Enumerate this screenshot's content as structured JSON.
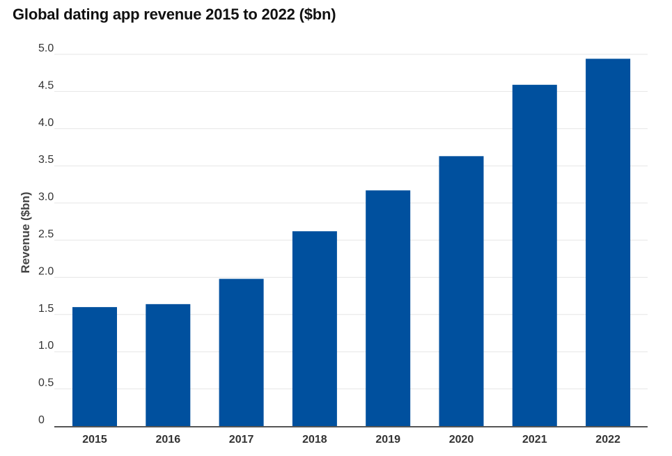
{
  "chart_data": {
    "type": "bar",
    "title": "Global dating app revenue 2015 to 2022 ($bn)",
    "xlabel": "",
    "ylabel": "Revenue ($bn)",
    "categories": [
      "2015",
      "2016",
      "2017",
      "2018",
      "2019",
      "2020",
      "2021",
      "2022"
    ],
    "values": [
      1.6,
      1.64,
      1.98,
      2.62,
      3.17,
      3.63,
      4.59,
      4.94
    ],
    "ylim": [
      0,
      5.0
    ],
    "yticks": [
      "0",
      "0.5",
      "1.0",
      "1.5",
      "2.0",
      "2.5",
      "3.0",
      "3.5",
      "4.0",
      "4.5",
      "5.0"
    ],
    "grid": true,
    "legend": "none",
    "colors": {
      "bar": "#00509e",
      "grid": "#e6e6e6",
      "axis": "#555555"
    }
  }
}
